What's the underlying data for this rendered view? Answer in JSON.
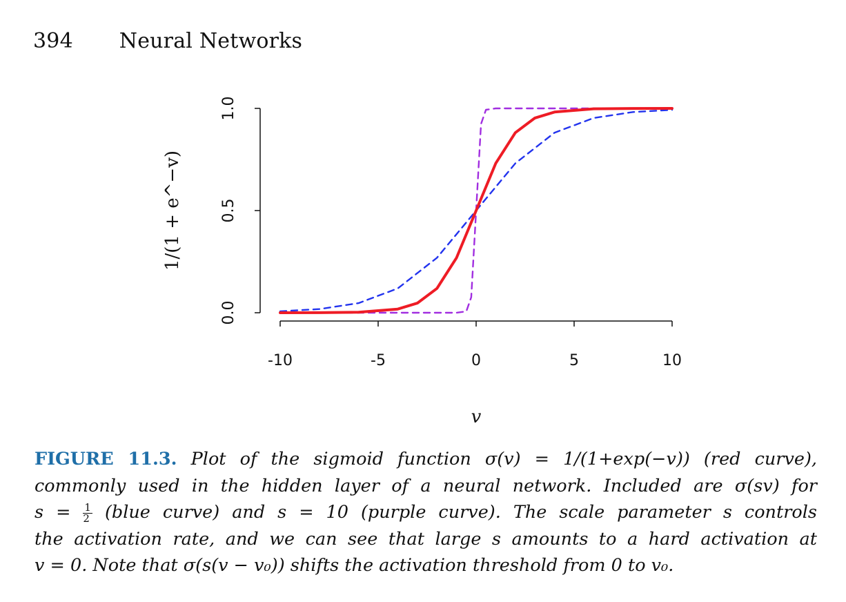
{
  "header": {
    "page_number": "394",
    "section": "Neural Networks"
  },
  "chart_data": {
    "type": "line",
    "ylabel": "1/(1 + e^−v)",
    "xlabel": "v",
    "xlim": [
      -10,
      10
    ],
    "ylim": [
      0,
      1
    ],
    "x_ticks": [
      "-10",
      "-5",
      "0",
      "5",
      "10"
    ],
    "y_ticks": [
      "0.0",
      "0.5",
      "1.0"
    ],
    "series": [
      {
        "function": "1/(1+exp(-v))",
        "scale": 1,
        "color": "#ee1c25",
        "style": "solid",
        "x": [
          -10,
          -8,
          -6,
          -4,
          -3,
          -2,
          -1,
          0,
          1,
          2,
          3,
          4,
          6,
          8,
          10
        ],
        "y": [
          0.0,
          0.0003,
          0.0025,
          0.018,
          0.047,
          0.119,
          0.269,
          0.5,
          0.731,
          0.881,
          0.953,
          0.982,
          0.998,
          0.9997,
          1.0
        ]
      },
      {
        "function": "1/(1+exp(-v/2))",
        "scale": 0.5,
        "color": "#2233ee",
        "style": "dashed",
        "x": [
          -10,
          -8,
          -6,
          -4,
          -2,
          0,
          2,
          4,
          6,
          8,
          10
        ],
        "y": [
          0.007,
          0.018,
          0.047,
          0.119,
          0.269,
          0.5,
          0.731,
          0.881,
          0.953,
          0.982,
          0.993
        ]
      },
      {
        "function": "1/(1+exp(-10v))",
        "scale": 10,
        "color": "#a12ee0",
        "style": "dashed",
        "x": [
          -10,
          -1,
          -0.5,
          -0.25,
          0,
          0.25,
          0.5,
          1,
          10
        ],
        "y": [
          0.0,
          5e-05,
          0.0067,
          0.076,
          0.5,
          0.924,
          0.9933,
          0.99995,
          1.0
        ]
      }
    ]
  },
  "caption": {
    "label": "FIGURE 11.3.",
    "line1": "Plot of the sigmoid function σ(v) = 1/(1+exp(−v)) (red curve),",
    "line2": "commonly used in the hidden layer of a neural network. Included are σ(sv) for",
    "line3_a": "s =",
    "line3_frac_num": "1",
    "line3_frac_den": "2",
    "line3_b": "(blue curve) and s = 10 (purple curve). The scale parameter s controls",
    "line4": "the activation rate, and we can see that large s amounts to a hard activation at",
    "line5": "v = 0. Note that σ(s(v − v₀)) shifts the activation threshold from 0 to v₀."
  },
  "colors": {
    "caption_label": "#1f6fa8",
    "red": "#ee1c25",
    "blue": "#2233ee",
    "purple": "#a12ee0"
  }
}
